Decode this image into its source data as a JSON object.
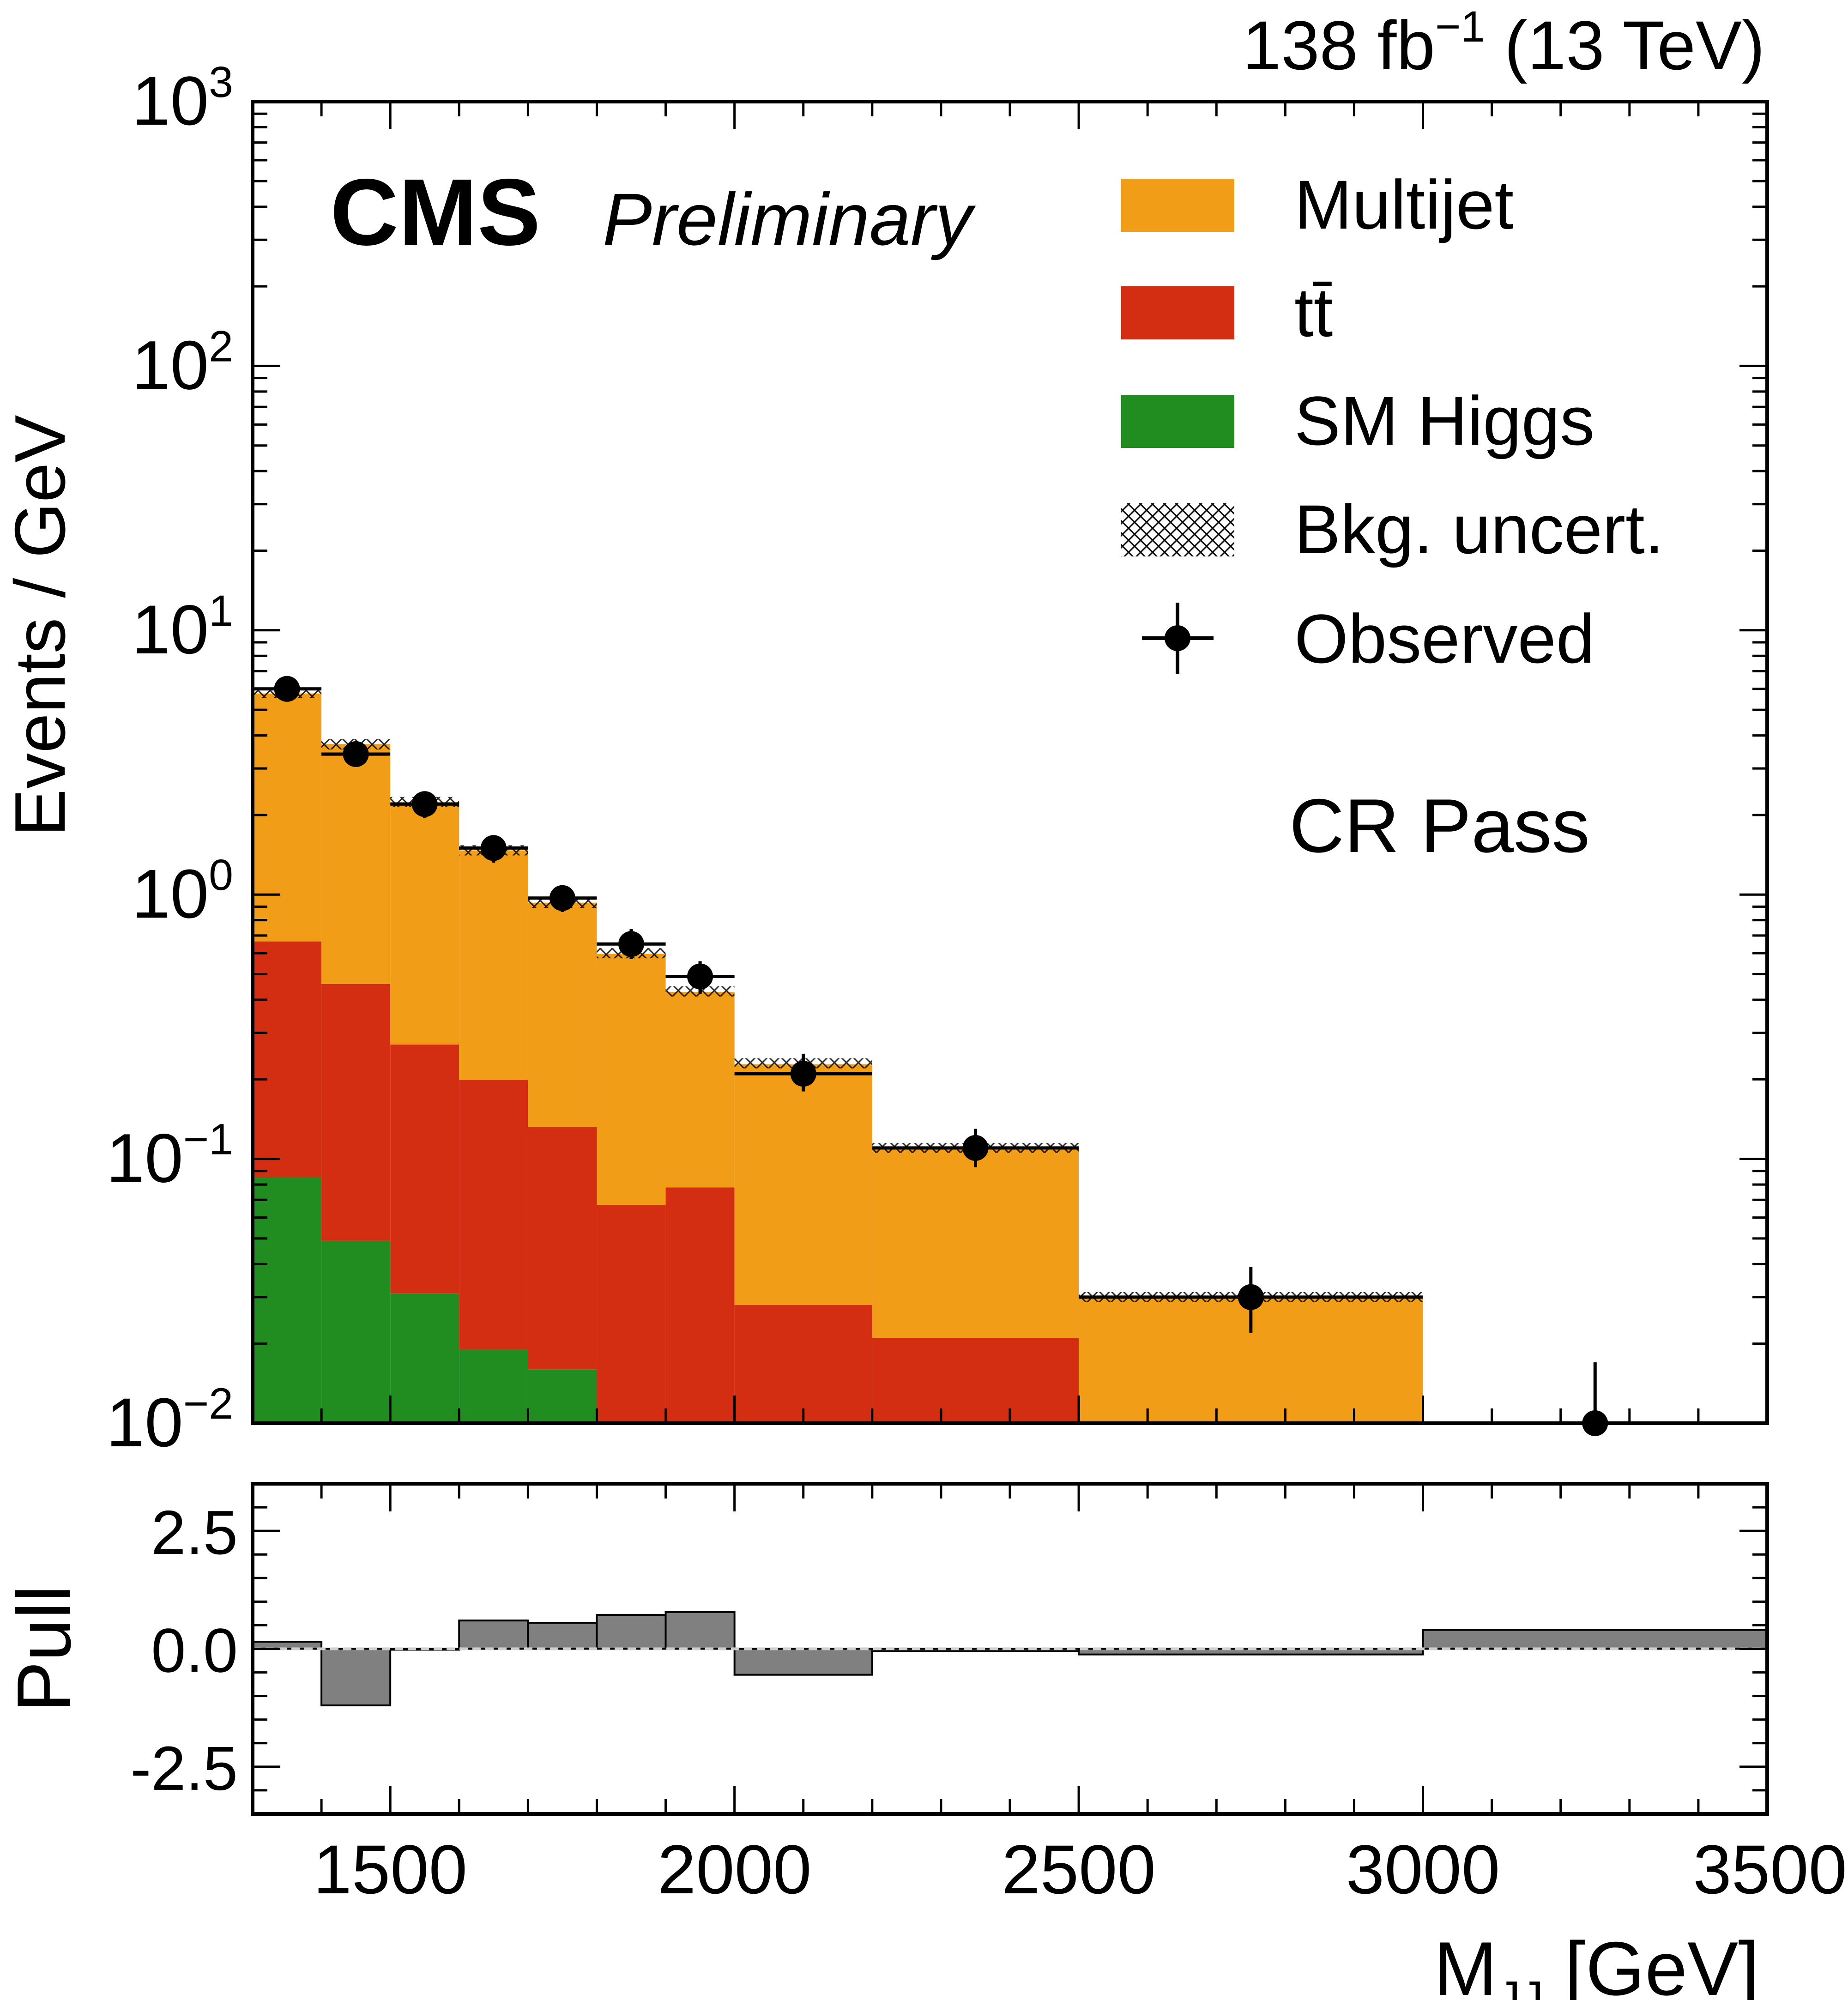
{
  "header": {
    "lumi_prefix": "138 fb",
    "lumi_exp": "−1",
    "lumi_suffix": " (13 TeV)",
    "cms_label": "CMS",
    "cms_extra": "Preliminary",
    "region_label": "CR Pass"
  },
  "colors": {
    "multijet": "#f29d18",
    "ttbar": "#d42e12",
    "smhiggs": "#218d21",
    "pull_fill": "#808080",
    "observed": "#000000"
  },
  "legend": {
    "items": [
      {
        "key": "multijet",
        "label": "Multijet"
      },
      {
        "key": "ttbar",
        "label": "tt̄"
      },
      {
        "key": "smhiggs",
        "label": "SM Higgs"
      },
      {
        "key": "bkg_unc",
        "label": "Bkg. uncert."
      },
      {
        "key": "observed",
        "label": "Observed"
      }
    ]
  },
  "chart_data": {
    "type": "bar",
    "stacked": true,
    "title": "",
    "xlabel": "M",
    "xlabel_sub": "JJ",
    "xlabel_unit": " [GeV]",
    "ylabel": "Events / GeV",
    "pull_ylabel": "Pull",
    "xlim": [
      1300,
      3500
    ],
    "ylim": [
      0.01,
      1000
    ],
    "yscale": "log",
    "pull_ylim": [
      -3.5,
      3.5
    ],
    "x_ticks": [
      1500,
      2000,
      2500,
      3000,
      3500
    ],
    "x_tick_labels": [
      "1500",
      "2000",
      "2500",
      "3000",
      "3500"
    ],
    "y_ticks": [
      {
        "base": "10",
        "exp": "3"
      },
      {
        "base": "10",
        "exp": "2"
      },
      {
        "base": "10",
        "exp": "1"
      },
      {
        "base": "10",
        "exp": "0"
      },
      {
        "base": "10",
        "exp": "−1"
      },
      {
        "base": "10",
        "exp": "−2"
      }
    ],
    "pull_ticks": [
      "2.5",
      "0.0",
      "-2.5"
    ],
    "bin_edges": [
      1300,
      1400,
      1500,
      1600,
      1700,
      1800,
      1900,
      2000,
      2200,
      2500,
      3000,
      3500
    ],
    "series": [
      {
        "name": "SM Higgs",
        "values": [
          0.085,
          0.049,
          0.031,
          0.019,
          0.016,
          0.0,
          0.0,
          0.0,
          0.0,
          0.0,
          0.0
        ]
      },
      {
        "name": "tt̄",
        "values": [
          0.58,
          0.41,
          0.24,
          0.18,
          0.116,
          0.067,
          0.078,
          0.028,
          0.021,
          0.0,
          0.0
        ]
      },
      {
        "name": "Multijet",
        "values": [
          5.1,
          3.25,
          1.97,
          1.27,
          0.8,
          0.53,
          0.35,
          0.2,
          0.089,
          0.03,
          0.0
        ]
      }
    ],
    "total_background": [
      5.8,
      3.7,
      2.24,
      1.47,
      0.93,
      0.6,
      0.43,
      0.23,
      0.11,
      0.03,
      0.0
    ],
    "observed": {
      "x": [
        1350,
        1450,
        1550,
        1650,
        1750,
        1850,
        1950,
        2100,
        2350,
        2750,
        3250
      ],
      "y": [
        6.0,
        3.4,
        2.2,
        1.5,
        0.97,
        0.65,
        0.49,
        0.21,
        0.11,
        0.03,
        0.01
      ],
      "y_low": [
        5.55,
        3.1,
        1.95,
        1.32,
        0.86,
        0.57,
        0.42,
        0.18,
        0.093,
        0.022,
        0.0029
      ],
      "y_high": [
        6.4,
        3.7,
        2.4,
        1.62,
        1.07,
        0.74,
        0.56,
        0.25,
        0.13,
        0.039,
        0.017
      ]
    },
    "pull": [
      0.15,
      -1.2,
      0.0,
      0.6,
      0.55,
      0.72,
      0.78,
      -0.55,
      -0.05,
      -0.12,
      0.4
    ]
  }
}
